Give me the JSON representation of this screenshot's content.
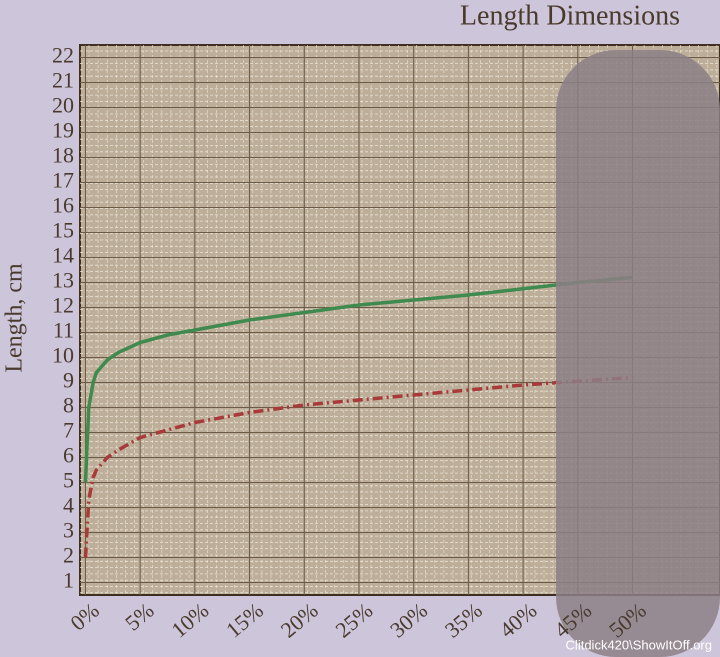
{
  "chart_data": {
    "type": "line",
    "title": "Length Dimensions",
    "ylabel": "Length, cm",
    "x_format": "percent",
    "series": [
      {
        "color": "#3f8a4e",
        "dash": "solid",
        "x": [
          0,
          0.3,
          0.7,
          1,
          2,
          3,
          5,
          7.5,
          10,
          15,
          20,
          25,
          30,
          35,
          40,
          45,
          50
        ],
        "values": [
          5,
          8,
          9,
          9.4,
          9.9,
          10.2,
          10.6,
          10.9,
          11.1,
          11.5,
          11.8,
          12.1,
          12.3,
          12.5,
          12.75,
          13,
          13.2
        ]
      },
      {
        "color": "#a83a3a",
        "dash": "dashdot",
        "x": [
          0,
          0.3,
          0.7,
          1,
          2,
          3,
          5,
          7.5,
          10,
          15,
          20,
          25,
          30,
          35,
          40,
          45,
          50
        ],
        "values": [
          2,
          4.3,
          5.2,
          5.5,
          6,
          6.3,
          6.8,
          7.1,
          7.4,
          7.8,
          8.1,
          8.3,
          8.5,
          8.7,
          8.9,
          9.05,
          9.2
        ]
      }
    ],
    "xlim": [
      -0.5,
      58
    ],
    "ylim": [
      0.5,
      22.5
    ],
    "xticks": [
      {
        "value": 0,
        "label": "0%"
      },
      {
        "value": 5,
        "label": "5%"
      },
      {
        "value": 10,
        "label": "10%"
      },
      {
        "value": 15,
        "label": "15%"
      },
      {
        "value": 20,
        "label": "20%"
      },
      {
        "value": 25,
        "label": "25%"
      },
      {
        "value": 30,
        "label": "30%"
      },
      {
        "value": 35,
        "label": "35%"
      },
      {
        "value": 40,
        "label": "40%"
      },
      {
        "value": 45,
        "label": "45%"
      },
      {
        "value": 50,
        "label": "50%"
      }
    ],
    "yticks": [
      1,
      2,
      3,
      4,
      5,
      6,
      7,
      8,
      9,
      10,
      11,
      12,
      13,
      14,
      15,
      16,
      17,
      18,
      19,
      20,
      21,
      22
    ],
    "grid": true,
    "watermark": "Clitdick420\\ShowItOff.org"
  }
}
